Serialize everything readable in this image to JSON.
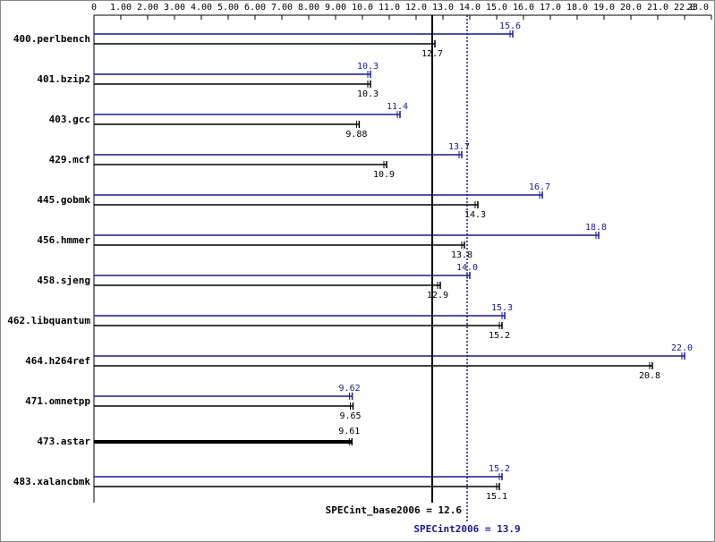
{
  "chart_data": {
    "type": "hbar",
    "categories": [
      "400.perlbench",
      "401.bzip2",
      "403.gcc",
      "429.mcf",
      "445.gobmk",
      "456.hmmer",
      "458.sjeng",
      "462.libquantum",
      "464.h264ref",
      "471.omnetpp",
      "473.astar",
      "483.xalancbmk"
    ],
    "series": [
      {
        "color": "#1a1a8c",
        "values": [
          15.6,
          10.3,
          11.4,
          13.7,
          16.7,
          18.8,
          14.0,
          15.3,
          22.0,
          9.62,
          null,
          15.2
        ],
        "value_labels": [
          "15.6",
          "10.3",
          "11.4",
          "13.7",
          "16.7",
          "18.8",
          "14.0",
          "15.3",
          "22.0",
          "9.62",
          null,
          "15.2"
        ]
      },
      {
        "color": "#000000",
        "values": [
          12.7,
          10.3,
          9.88,
          10.9,
          14.3,
          13.8,
          12.9,
          15.2,
          20.8,
          9.65,
          9.61,
          15.1
        ]
      }
    ],
    "xlim": [
      0,
      23.0
    ],
    "xticks": [
      0,
      {
        "value": 1,
        "label": "1.00"
      },
      {
        "value": 2,
        "label": "2.00"
      },
      {
        "value": 3,
        "label": "3.00"
      },
      {
        "value": 4,
        "label": "4.00"
      },
      {
        "value": 5,
        "label": "5.00"
      },
      {
        "value": 6,
        "label": "6.00"
      },
      {
        "value": 7,
        "label": "7.00"
      },
      {
        "value": 8,
        "label": "8.00"
      },
      {
        "value": 9,
        "label": "9.00"
      },
      {
        "value": 10,
        "label": "10.0"
      },
      {
        "value": 11,
        "label": "11.0"
      },
      {
        "value": 12,
        "label": "12.0"
      },
      {
        "value": 13,
        "label": "13.0"
      },
      {
        "value": 14,
        "label": "14.0"
      },
      {
        "value": 15,
        "label": "15.0"
      },
      {
        "value": 16,
        "label": "16.0"
      },
      {
        "value": 17,
        "label": "17.0"
      },
      {
        "value": 18,
        "label": "18.0"
      },
      {
        "value": 19,
        "label": "19.0"
      },
      {
        "value": 20,
        "label": "20.0"
      },
      {
        "value": 21,
        "label": "21.0"
      },
      {
        "value": 22,
        "label": "22.0"
      },
      {
        "value": 23,
        "label": "23.0"
      }
    ],
    "reference_lines": [
      {
        "label": "SPECint_base2006 = 12.6",
        "value": 12.6,
        "color": "#000000"
      },
      {
        "label": "SPECint2006 = 13.9",
        "value": 13.9,
        "color": "#1a1a8c"
      }
    ]
  }
}
